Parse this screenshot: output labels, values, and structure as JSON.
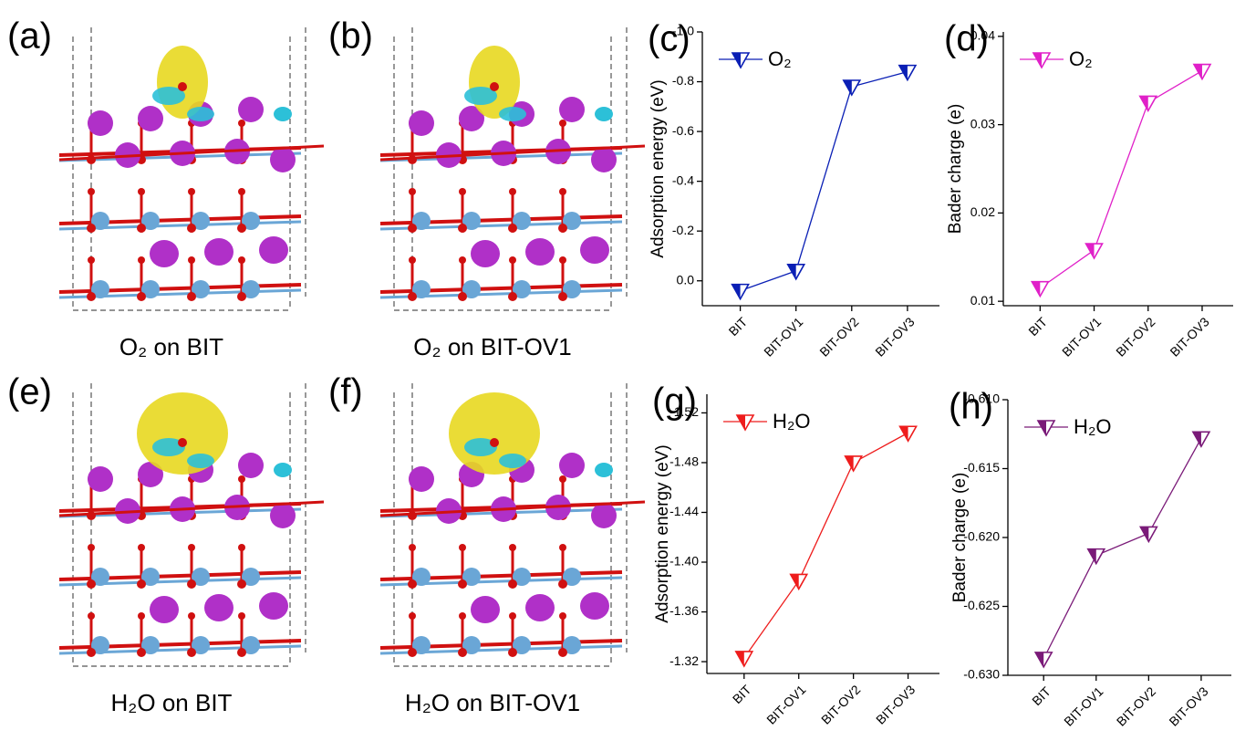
{
  "structures": [
    {
      "label": "(a)",
      "caption": "O₂ on BIT"
    },
    {
      "label": "(b)",
      "caption": "O₂ on BIT-OV1"
    },
    {
      "label": "(e)",
      "caption": "H₂O on BIT"
    },
    {
      "label": "(f)",
      "caption": "H₂O on BIT-OV1"
    }
  ],
  "chart_data": [
    {
      "type": "line",
      "label": "(c)",
      "ylabel": "Adsorption energy (eV)",
      "categories": [
        "BIT",
        "BIT-OV1",
        "BIT-OV2",
        "BIT-OV3"
      ],
      "series": [
        {
          "name": "O₂",
          "color": "#0a1fb5",
          "values": [
            0.04,
            -0.04,
            -0.78,
            -0.84
          ]
        }
      ],
      "ylim": [
        0.1,
        -1.0
      ],
      "yticks": [
        {
          "value": 0,
          "label": "0.0"
        },
        -0.2,
        -0.4,
        -0.6,
        -0.8,
        {
          "value": -1,
          "label": "-1.0"
        }
      ],
      "legend": "upper left"
    },
    {
      "type": "line",
      "label": "(d)",
      "ylabel": "Bader charge (e)",
      "categories": [
        "BIT",
        "BIT-OV1",
        "BIT-OV2",
        "BIT-OV3"
      ],
      "series": [
        {
          "name": "O₂",
          "color": "#e020c8",
          "values": [
            0.0115,
            0.0158,
            0.0325,
            0.0361
          ]
        }
      ],
      "ylim": [
        0.0095,
        0.0405
      ],
      "yticks": [
        0.01,
        0.02,
        0.03,
        0.04
      ],
      "legend": "upper left"
    },
    {
      "type": "line",
      "label": "(g)",
      "ylabel": "Adsorption energy (eV)",
      "categories": [
        "BIT",
        "BIT-OV1",
        "BIT-OV2",
        "BIT-OV3"
      ],
      "series": [
        {
          "name": "H₂O",
          "color": "#ee1c1c",
          "values": [
            -1.323,
            -1.385,
            -1.48,
            -1.504
          ]
        }
      ],
      "ylim": [
        -1.3105,
        -1.535
      ],
      "yticks": [
        -1.32,
        -1.36,
        {
          "value": -1.4,
          "label": "-1.40"
        },
        -1.44,
        -1.48,
        -1.52
      ],
      "legend": "upper left"
    },
    {
      "type": "line",
      "label": "(h)",
      "ylabel": "Bader charge (e)",
      "categories": [
        "BIT",
        "BIT-OV1",
        "BIT-OV2",
        "BIT-OV3"
      ],
      "series": [
        {
          "name": "H₂O",
          "color": "#7a1a78",
          "values": [
            -0.6288,
            -0.6213,
            -0.6197,
            -0.6128
          ]
        }
      ],
      "ylim": [
        -0.63,
        -0.61
      ],
      "yticks": [
        {
          "value": -0.63,
          "label": "-0.630"
        },
        -0.625,
        {
          "value": -0.62,
          "label": "-0.620"
        },
        -0.615,
        {
          "value": -0.61,
          "label": "-0.610"
        }
      ],
      "legend": "upper left"
    }
  ]
}
